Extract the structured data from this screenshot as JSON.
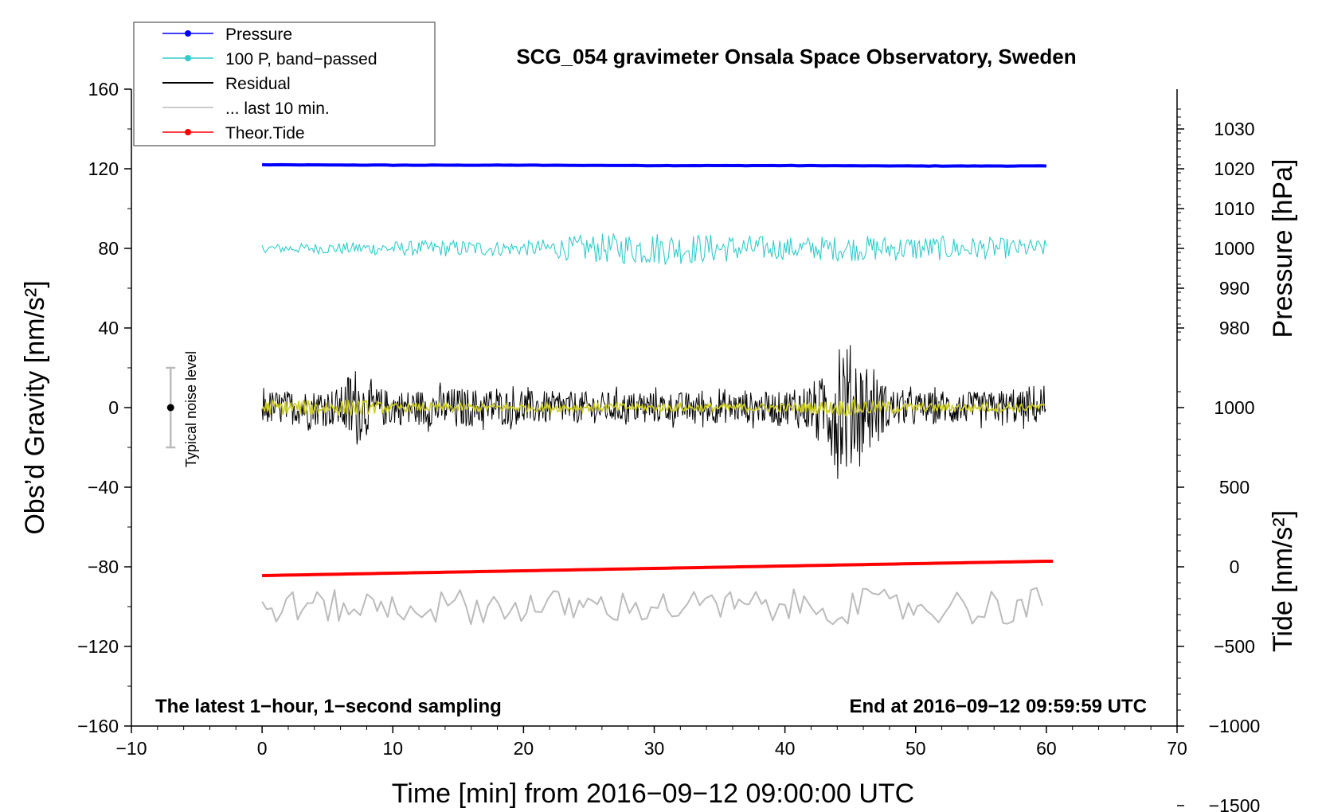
{
  "chart_data": {
    "type": "line",
    "title": "SCG_054 gravimeter Onsala Space Observatory, Sweden",
    "xlabel": "Time [min] from 2016−09−12 09:00:00 UTC",
    "ylabel_left": "Obs’d Gravity [nm/s²]",
    "ylabel_right_upper": "Pressure [hPa]",
    "ylabel_right_lower": "Tide [nm/s²]",
    "xlim": [
      -10,
      70
    ],
    "ylim_left": [
      -160,
      160
    ],
    "x_ticks": [
      "−10",
      "0",
      "10",
      "20",
      "30",
      "40",
      "50",
      "60",
      "70"
    ],
    "y_ticks_left": [
      "160",
      "120",
      "80",
      "40",
      "0",
      "−40",
      "−80",
      "−120",
      "−160"
    ],
    "pressure_ticks": [
      "1030",
      "1020",
      "1010",
      "1000",
      "990",
      "980"
    ],
    "tide_ticks": [
      "1000",
      "500",
      "0",
      "−500",
      "−1000",
      "−1500"
    ],
    "note_left": "The latest 1−hour, 1−second sampling",
    "note_right": "End at 2016−09−12 09:59:59 UTC",
    "noise_label": "Typical noise level",
    "noise_level": {
      "x": -7,
      "center": 0,
      "half_range": 20
    },
    "colors": {
      "pressure": "#0000ff",
      "bandpassed": "#33cccc",
      "residual": "#000000",
      "last10": "#bbbbbb",
      "tide": "#ff0000",
      "smoothed": "#cccc22"
    },
    "legend": [
      {
        "label": "Pressure",
        "color": "#0000ff",
        "marker": true
      },
      {
        "label": "100 P, band−passed",
        "color": "#33cccc",
        "marker": true
      },
      {
        "label": "Residual",
        "color": "#000000",
        "marker": false
      },
      {
        "label": "... last 10 min.",
        "color": "#bbbbbb",
        "marker": false
      },
      {
        "label": "Theor.Tide",
        "color": "#ff0000",
        "marker": true
      }
    ],
    "series": [
      {
        "name": "Pressure",
        "units": "hPa",
        "x": [
          0,
          10,
          20,
          30,
          40,
          50,
          60
        ],
        "values": [
          1021.0,
          1020.9,
          1020.9,
          1020.8,
          1020.8,
          1020.7,
          1020.7
        ]
      },
      {
        "name": "100 P, band−passed",
        "units": "nm/s² (plotted)",
        "baseline": 80,
        "envelope_x": [
          0,
          5,
          10,
          15,
          20,
          25,
          30,
          35,
          40,
          45,
          50,
          55,
          60
        ],
        "envelope_amp": [
          3,
          4,
          5,
          6,
          5,
          10,
          12,
          10,
          8,
          9,
          9,
          8,
          6
        ]
      },
      {
        "name": "Residual",
        "units": "nm/s²",
        "baseline": 0,
        "envelope_x": [
          0,
          3,
          6,
          7,
          8,
          10,
          15,
          20,
          25,
          30,
          35,
          40,
          43,
          44,
          45,
          46,
          48,
          50,
          55,
          60
        ],
        "envelope_amp": [
          12,
          12,
          14,
          32,
          16,
          12,
          14,
          12,
          11,
          11,
          11,
          11,
          22,
          50,
          45,
          30,
          14,
          11,
          11,
          12
        ]
      },
      {
        "name": "Residual (smoothed)",
        "units": "nm/s²",
        "baseline": 0,
        "envelope_x": [
          0,
          7,
          10,
          20,
          30,
          40,
          45,
          50,
          60
        ],
        "envelope_amp": [
          5,
          6,
          3,
          3,
          3,
          3,
          6,
          3,
          3
        ]
      },
      {
        "name": "... last 10 min.",
        "units": "nm/s² (plotted)",
        "baseline": -100,
        "envelope_x": [
          0,
          15,
          30,
          45,
          60
        ],
        "envelope_amp": [
          8,
          9,
          8,
          9,
          10
        ]
      },
      {
        "name": "Theor.Tide",
        "units": "nm/s²",
        "x": [
          0,
          10,
          20,
          30,
          40,
          50,
          60
        ],
        "values": [
          -55,
          -40,
          -25,
          -10,
          5,
          20,
          35
        ]
      }
    ]
  }
}
